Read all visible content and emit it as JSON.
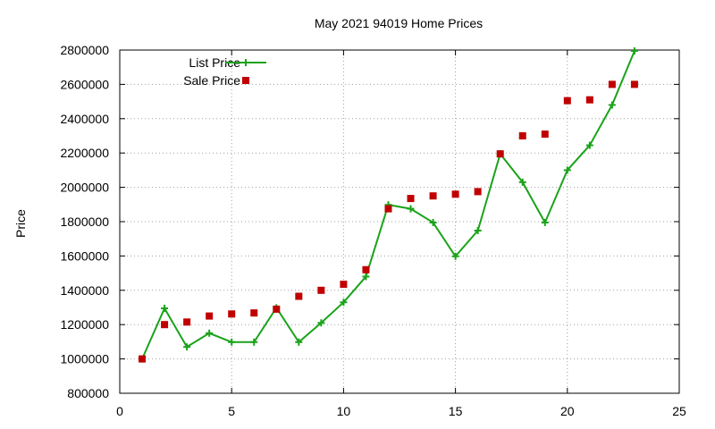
{
  "chart_data": {
    "type": "line",
    "title": "May 2021 94019 Home Prices",
    "xlabel": "",
    "ylabel": "Price",
    "xlim": [
      0,
      25
    ],
    "ylim": [
      800000,
      2800000
    ],
    "xticks": [
      0,
      5,
      10,
      15,
      20,
      25
    ],
    "yticks": [
      800000,
      1000000,
      1200000,
      1400000,
      1600000,
      1800000,
      2000000,
      2200000,
      2400000,
      2600000,
      2800000
    ],
    "grid": true,
    "legend_position": "top-left",
    "series": [
      {
        "name": "List Price",
        "style": "line-plus",
        "color": "#1aa31a",
        "points": [
          [
            1,
            1000000
          ],
          [
            2,
            1295000
          ],
          [
            3,
            1070000
          ],
          [
            4,
            1150000
          ],
          [
            5,
            1098000
          ],
          [
            6,
            1098000
          ],
          [
            7,
            1298000
          ],
          [
            8,
            1098000
          ],
          [
            9,
            1210000
          ],
          [
            10,
            1330000
          ],
          [
            11,
            1480000
          ],
          [
            12,
            1898000
          ],
          [
            13,
            1875000
          ],
          [
            14,
            1795000
          ],
          [
            15,
            1598000
          ],
          [
            16,
            1748000
          ],
          [
            17,
            2195000
          ],
          [
            18,
            2030000
          ],
          [
            19,
            1795000
          ],
          [
            20,
            2100000
          ],
          [
            21,
            2245000
          ],
          [
            22,
            2480000
          ],
          [
            23,
            2795000
          ]
        ]
      },
      {
        "name": "Sale Price",
        "style": "square",
        "color": "#c00000",
        "points": [
          [
            1,
            1000000
          ],
          [
            2,
            1200000
          ],
          [
            3,
            1215000
          ],
          [
            4,
            1250000
          ],
          [
            5,
            1262000
          ],
          [
            6,
            1268000
          ],
          [
            7,
            1290000
          ],
          [
            8,
            1365000
          ],
          [
            9,
            1400000
          ],
          [
            10,
            1435000
          ],
          [
            11,
            1520000
          ],
          [
            12,
            1875000
          ],
          [
            13,
            1935000
          ],
          [
            14,
            1950000
          ],
          [
            15,
            1960000
          ],
          [
            16,
            1975000
          ],
          [
            17,
            2195000
          ],
          [
            18,
            2300000
          ],
          [
            19,
            2310000
          ],
          [
            20,
            2505000
          ],
          [
            21,
            2510000
          ],
          [
            22,
            2600000
          ],
          [
            23,
            2600000
          ]
        ]
      }
    ]
  }
}
